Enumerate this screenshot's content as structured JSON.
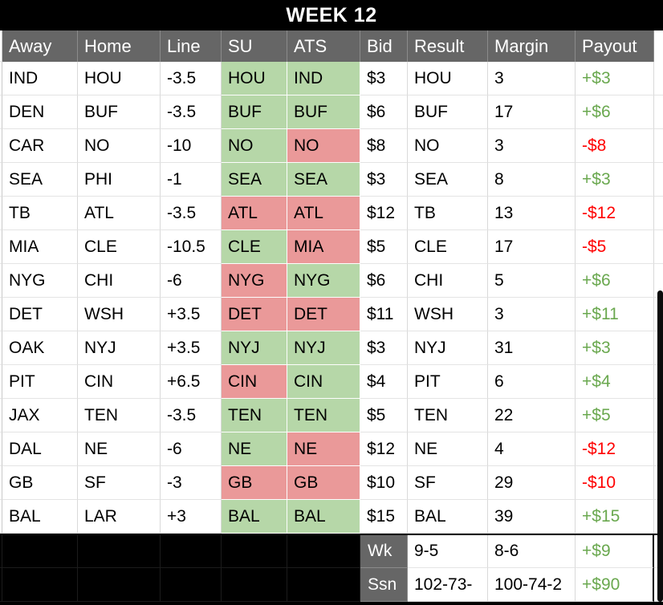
{
  "title": "WEEK 12",
  "columns": [
    "Away",
    "Home",
    "Line",
    "SU",
    "ATS",
    "Bid",
    "Result",
    "Margin",
    "Payout"
  ],
  "colors": {
    "title_bg": "#000000",
    "header_bg": "#666666",
    "win_bg": "#b6d7a8",
    "loss_bg": "#ea9999",
    "positive_text": "#6aa84f",
    "negative_text": "#ff0000"
  },
  "rows": [
    {
      "away": "IND",
      "home": "HOU",
      "line": "-3.5",
      "su": "HOU",
      "su_bg": "win",
      "ats": "IND",
      "ats_bg": "win",
      "bid": "$3",
      "result": "HOU",
      "margin": "3",
      "payout": "+$3",
      "payout_sign": "positive"
    },
    {
      "away": "DEN",
      "home": "BUF",
      "line": "-3.5",
      "su": "BUF",
      "su_bg": "win",
      "ats": "BUF",
      "ats_bg": "win",
      "bid": "$6",
      "result": "BUF",
      "margin": "17",
      "payout": "+$6",
      "payout_sign": "positive"
    },
    {
      "away": "CAR",
      "home": "NO",
      "line": "-10",
      "su": "NO",
      "su_bg": "win",
      "ats": "NO",
      "ats_bg": "loss",
      "bid": "$8",
      "result": "NO",
      "margin": "3",
      "payout": "-$8",
      "payout_sign": "negative"
    },
    {
      "away": "SEA",
      "home": "PHI",
      "line": "-1",
      "su": "SEA",
      "su_bg": "win",
      "ats": "SEA",
      "ats_bg": "win",
      "bid": "$3",
      "result": "SEA",
      "margin": "8",
      "payout": "+$3",
      "payout_sign": "positive"
    },
    {
      "away": "TB",
      "home": "ATL",
      "line": "-3.5",
      "su": "ATL",
      "su_bg": "loss",
      "ats": "ATL",
      "ats_bg": "loss",
      "bid": "$12",
      "result": "TB",
      "margin": "13",
      "payout": "-$12",
      "payout_sign": "negative"
    },
    {
      "away": "MIA",
      "home": "CLE",
      "line": "-10.5",
      "su": "CLE",
      "su_bg": "win",
      "ats": "MIA",
      "ats_bg": "loss",
      "bid": "$5",
      "result": "CLE",
      "margin": "17",
      "payout": "-$5",
      "payout_sign": "negative"
    },
    {
      "away": "NYG",
      "home": "CHI",
      "line": "-6",
      "su": "NYG",
      "su_bg": "loss",
      "ats": "NYG",
      "ats_bg": "win",
      "bid": "$6",
      "result": "CHI",
      "margin": "5",
      "payout": "+$6",
      "payout_sign": "positive"
    },
    {
      "away": "DET",
      "home": "WSH",
      "line": "+3.5",
      "su": "DET",
      "su_bg": "loss",
      "ats": "DET",
      "ats_bg": "loss",
      "bid": "$11",
      "result": "WSH",
      "margin": "3",
      "payout": "+$11",
      "payout_sign": "positive"
    },
    {
      "away": "OAK",
      "home": "NYJ",
      "line": "+3.5",
      "su": "NYJ",
      "su_bg": "win",
      "ats": "NYJ",
      "ats_bg": "win",
      "bid": "$3",
      "result": "NYJ",
      "margin": "31",
      "payout": "+$3",
      "payout_sign": "positive"
    },
    {
      "away": "PIT",
      "home": "CIN",
      "line": "+6.5",
      "su": "CIN",
      "su_bg": "loss",
      "ats": "CIN",
      "ats_bg": "win",
      "bid": "$4",
      "result": "PIT",
      "margin": "6",
      "payout": "+$4",
      "payout_sign": "positive"
    },
    {
      "away": "JAX",
      "home": "TEN",
      "line": "-3.5",
      "su": "TEN",
      "su_bg": "win",
      "ats": "TEN",
      "ats_bg": "win",
      "bid": "$5",
      "result": "TEN",
      "margin": "22",
      "payout": "+$5",
      "payout_sign": "positive"
    },
    {
      "away": "DAL",
      "home": "NE",
      "line": "-6",
      "su": "NE",
      "su_bg": "win",
      "ats": "NE",
      "ats_bg": "loss",
      "bid": "$12",
      "result": "NE",
      "margin": "4",
      "payout": "-$12",
      "payout_sign": "negative"
    },
    {
      "away": "GB",
      "home": "SF",
      "line": "-3",
      "su": "GB",
      "su_bg": "loss",
      "ats": "GB",
      "ats_bg": "loss",
      "bid": "$10",
      "result": "SF",
      "margin": "29",
      "payout": "-$10",
      "payout_sign": "negative"
    },
    {
      "away": "BAL",
      "home": "LAR",
      "line": "+3",
      "su": "BAL",
      "su_bg": "win",
      "ats": "BAL",
      "ats_bg": "win",
      "bid": "$15",
      "result": "BAL",
      "margin": "39",
      "payout": "+$15",
      "payout_sign": "positive"
    }
  ],
  "summary": [
    {
      "label": "Wk",
      "result": "9-5",
      "margin": "8-6",
      "payout": "+$9",
      "payout_sign": "positive"
    },
    {
      "label": "Ssn",
      "result": "102-73-",
      "margin": "100-74-2",
      "payout": "+$90",
      "payout_sign": "positive"
    }
  ]
}
